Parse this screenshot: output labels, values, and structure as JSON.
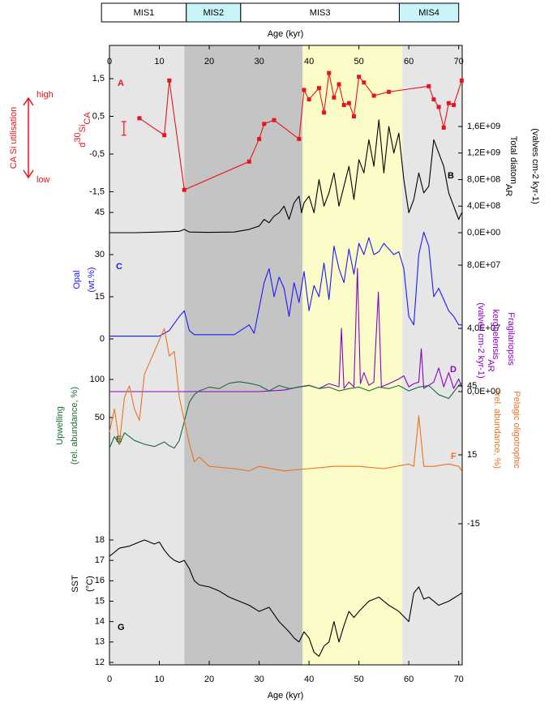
{
  "x_axis": {
    "label": "Age (kyr)",
    "xlim": [
      0,
      70.7
    ],
    "xticks": [
      0,
      10,
      20,
      30,
      40,
      50,
      60,
      70
    ]
  },
  "stages": [
    {
      "name": "MIS1",
      "start": -1.6,
      "end": 15.4,
      "color": "#ffffff"
    },
    {
      "name": "MIS2",
      "start": 15.4,
      "end": 26.3,
      "color": "#c8f4f8"
    },
    {
      "name": "MIS3",
      "start": 26.3,
      "end": 58.1,
      "color": "#ffffff"
    },
    {
      "name": "MIS4",
      "start": 58.1,
      "end": 70.0,
      "color": "#c8f4f8"
    }
  ],
  "bands": [
    {
      "start": 0,
      "end": 15,
      "color": "#e6e6e6"
    },
    {
      "start": 15,
      "end": 38.7,
      "color": "#c4c4c4"
    },
    {
      "start": 38.7,
      "end": 58.7,
      "color": "#fcfcc8"
    },
    {
      "start": 58.7,
      "end": 70.7,
      "color": "#e6e6e6"
    }
  ],
  "chart_data": [
    {
      "type": "line",
      "letter": "A",
      "axis": "left",
      "color": "#e8141b",
      "markers": true,
      "label": [
        [
          {
            "text": "d"
          },
          {
            "text": "30",
            "pos": "sup"
          },
          {
            "text": "Si"
          },
          {
            "text": "CA",
            "pos": "sub"
          }
        ]
      ],
      "annotations": {
        "high": "high",
        "low": "low",
        "note": "CA Si utilisation"
      },
      "error_bar": {
        "x": 2.9,
        "low": 0.0,
        "high": 0.36
      },
      "ylim": [
        -1.7,
        1.75
      ],
      "yticks": [
        {
          "value": -1.5,
          "label": "-1,5"
        },
        {
          "value": -0.5,
          "label": "-0,5"
        },
        {
          "value": 0.5,
          "label": "0,5"
        },
        {
          "value": 1.5,
          "label": "1,5"
        }
      ],
      "x": [
        6,
        11,
        12,
        15,
        28,
        30,
        31,
        33,
        38,
        39,
        40,
        42,
        43,
        44,
        45,
        46,
        47,
        48,
        49,
        50,
        51,
        53,
        56,
        64,
        65,
        66,
        67,
        68,
        69,
        70.6
      ],
      "values": [
        0.45,
        0.0,
        1.45,
        -1.45,
        -0.7,
        -0.1,
        0.3,
        0.4,
        -0.1,
        1.2,
        0.95,
        1.25,
        0.6,
        1.65,
        1.0,
        1.35,
        0.8,
        0.85,
        0.5,
        1.55,
        1.4,
        1.05,
        1.15,
        1.3,
        0.95,
        0.75,
        0.2,
        0.85,
        0.8,
        1.45
      ]
    },
    {
      "type": "line",
      "letter": "B",
      "axis": "right",
      "color": "#000000",
      "label": [
        [
          {
            "text": "Total diatom"
          },
          {
            "text": "AR",
            "pos": "sub"
          }
        ],
        [
          {
            "text": "(valves cm-2 kyr-1)"
          }
        ]
      ],
      "ylim": [
        0,
        1800000000.0
      ],
      "yticks": [
        {
          "value": 0,
          "label": "0,0E+00"
        },
        {
          "value": 400000000.0,
          "label": "4,0E+08"
        },
        {
          "value": 800000000.0,
          "label": "8,0E+08"
        },
        {
          "value": 1200000000.0,
          "label": "1,2E+09"
        },
        {
          "value": 1600000000.0,
          "label": "1,6E+09"
        }
      ],
      "x": [
        0,
        5,
        10,
        14,
        15,
        16,
        20,
        25,
        28,
        30,
        31,
        32,
        33,
        34,
        35,
        36,
        37,
        38,
        38.5,
        39,
        40,
        41,
        42,
        43,
        44,
        45,
        46,
        47,
        48,
        49,
        50,
        51,
        52,
        53,
        54,
        55,
        56,
        57,
        58,
        59,
        60,
        61,
        62,
        63,
        64,
        65,
        66,
        67,
        68,
        69,
        70,
        70.6
      ],
      "values": [
        0,
        0,
        10000000.0,
        20000000.0,
        50000000.0,
        10000000.0,
        5000000.0,
        10000000.0,
        50000000.0,
        100000000.0,
        200000000.0,
        150000000.0,
        250000000.0,
        300000000.0,
        400000000.0,
        200000000.0,
        450000000.0,
        550000000.0,
        300000000.0,
        450000000.0,
        550000000.0,
        300000000.0,
        800000000.0,
        400000000.0,
        600000000.0,
        900000000.0,
        400000000.0,
        700000000.0,
        1000000000.0,
        500000000.0,
        1100000000.0,
        900000000.0,
        1400000000.0,
        1000000000.0,
        1700000000.0,
        900000000.0,
        1600000000.0,
        1200000000.0,
        1500000000.0,
        800000000.0,
        300000000.0,
        500000000.0,
        900000000.0,
        600000000.0,
        700000000.0,
        1400000000.0,
        1200000000.0,
        1000000000.0,
        600000000.0,
        400000000.0,
        200000000.0,
        300000000.0
      ]
    },
    {
      "type": "line",
      "letter": "C",
      "axis": "left",
      "color": "#1a1aff",
      "label": [
        [
          {
            "text": "Opal"
          }
        ],
        [
          {
            "text": "(wt.%)"
          }
        ]
      ],
      "ylim": [
        0,
        45
      ],
      "yticks": [
        0,
        15,
        30,
        45
      ],
      "x": [
        0,
        5,
        10,
        12,
        14,
        15,
        16,
        17,
        25,
        28,
        29,
        31,
        32,
        33,
        34,
        35,
        36,
        37,
        38,
        39,
        40,
        41,
        42,
        43,
        44,
        45,
        46,
        47,
        48,
        49,
        50,
        51,
        52,
        53,
        54,
        55,
        56,
        57,
        58,
        59,
        60,
        61,
        62,
        63,
        64,
        65,
        66,
        67,
        68,
        69,
        70,
        70.6
      ],
      "values": [
        1,
        1,
        1,
        3,
        8,
        10,
        3,
        1.5,
        1.5,
        5,
        2,
        20,
        25,
        15,
        22,
        18,
        8,
        20,
        13,
        24,
        10,
        19,
        15,
        27,
        14,
        33,
        25,
        20,
        32,
        23,
        34,
        30,
        36,
        30,
        31,
        34,
        32,
        30,
        31,
        25,
        8,
        5,
        30,
        38,
        33,
        15,
        18,
        14,
        10,
        8,
        5,
        5
      ]
    },
    {
      "type": "line",
      "letter": "D",
      "axis": "right",
      "color": "#8a00c8",
      "label": [
        [
          {
            "text": "Fragilariopsis"
          }
        ],
        [
          {
            "text": "kerguelensis"
          },
          {
            "text": "AR",
            "pos": "sub"
          }
        ],
        [
          {
            "text": "(valves cm-2 kyr-1)"
          }
        ]
      ],
      "ylim": [
        0,
        80000000.0
      ],
      "yticks": [
        {
          "value": 0,
          "label": "0,0E+00"
        },
        {
          "value": 40000000.0,
          "label": "4,0E+07"
        },
        {
          "value": 80000000.0,
          "label": "8,0E+07"
        }
      ],
      "x": [
        0,
        30,
        35,
        38,
        40,
        42,
        44,
        46,
        46.5,
        47,
        48,
        49,
        49.7,
        50.3,
        51,
        52,
        53,
        53.9,
        54.5,
        56,
        58,
        59,
        60,
        61,
        62,
        62.5,
        63,
        64,
        65,
        66,
        67,
        68,
        69,
        70,
        70.6
      ],
      "values": [
        0,
        0,
        1000000.0,
        3000000.0,
        4000000.0,
        2000000.0,
        5000000.0,
        3000000.0,
        40000000.0,
        2000000.0,
        6000000.0,
        3000000.0,
        78000000.0,
        5000000.0,
        12000000.0,
        4000000.0,
        6000000.0,
        63000000.0,
        3000000.0,
        5000000.0,
        8000000.0,
        10000000.0,
        3000000.0,
        5000000.0,
        6000000.0,
        27000000.0,
        2000000.0,
        4000000.0,
        6000000.0,
        15000000.0,
        3000000.0,
        12000000.0,
        2000000.0,
        8000000.0,
        3000000.0
      ]
    },
    {
      "type": "line",
      "letter": "E",
      "axis": "left",
      "color": "#1e6b37",
      "label": [
        [
          {
            "text": "Upwelling"
          }
        ],
        [
          {
            "text": "(rel. abundance, %)"
          }
        ]
      ],
      "ylim": [
        0,
        100
      ],
      "yticks": [
        50,
        100
      ],
      "x": [
        0,
        1,
        2,
        3,
        5,
        7,
        9,
        11,
        12,
        13,
        14,
        15,
        16,
        17,
        18,
        20,
        22,
        24,
        26,
        28,
        30,
        32,
        34,
        36,
        38,
        40,
        42,
        44,
        46,
        48,
        50,
        52,
        54,
        56,
        58,
        60,
        62,
        64,
        66,
        68,
        70,
        70.6
      ],
      "values": [
        10,
        25,
        15,
        30,
        20,
        15,
        12,
        18,
        13,
        10,
        20,
        45,
        70,
        80,
        85,
        90,
        88,
        95,
        97,
        95,
        92,
        85,
        92,
        88,
        90,
        92,
        88,
        90,
        85,
        88,
        90,
        85,
        90,
        88,
        92,
        85,
        90,
        92,
        80,
        75,
        92,
        95
      ]
    },
    {
      "type": "line",
      "letter": "F",
      "axis": "right",
      "color": "#f07020",
      "label": [
        [
          {
            "text": "Pelagic oligotrophic"
          }
        ],
        [
          {
            "text": "(rel. abundance, %)"
          }
        ]
      ],
      "ylim": [
        -15,
        45
      ],
      "yticks": [
        -15,
        15,
        45
      ],
      "x": [
        0,
        1,
        2,
        3,
        4,
        5,
        6,
        7,
        8,
        9,
        10,
        11,
        12,
        13,
        14,
        15,
        16,
        17,
        18,
        20,
        25,
        28,
        30,
        35,
        40,
        45,
        50,
        55,
        60,
        61,
        62,
        63,
        65,
        68,
        70,
        70.6
      ],
      "values": [
        25,
        35,
        20,
        40,
        45,
        35,
        30,
        50,
        55,
        60,
        65,
        70,
        58,
        60,
        40,
        30,
        20,
        12,
        14,
        10,
        9,
        8,
        10,
        8,
        9,
        10,
        10,
        9,
        11,
        10,
        32,
        10,
        10,
        11,
        10,
        8
      ]
    },
    {
      "type": "line",
      "letter": "G",
      "axis": "left",
      "color": "#000000",
      "label": [
        [
          {
            "text": "SST"
          }
        ],
        [
          {
            "text": "(°C)"
          }
        ]
      ],
      "ylim": [
        12,
        18
      ],
      "yticks": [
        12,
        13,
        14,
        15,
        16,
        17,
        18
      ],
      "x": [
        0,
        2,
        4,
        6,
        7,
        9,
        10,
        11,
        12,
        13,
        14,
        15,
        16,
        17,
        18,
        20,
        22,
        24,
        26,
        28,
        30,
        32,
        34,
        36,
        37,
        38,
        39,
        40,
        41,
        42,
        43,
        44,
        45,
        46,
        47,
        48,
        49,
        50,
        52,
        54,
        56,
        58,
        60,
        61,
        62,
        63,
        64,
        66,
        68,
        70,
        70.6
      ],
      "values": [
        17.2,
        17.6,
        17.7,
        17.9,
        18.0,
        17.8,
        17.9,
        17.5,
        17.2,
        17.0,
        16.9,
        17.0,
        16.6,
        16.0,
        15.8,
        15.7,
        15.5,
        15.2,
        15.0,
        14.8,
        14.5,
        14.7,
        14.0,
        13.5,
        13.2,
        13.0,
        13.5,
        13.2,
        12.5,
        12.3,
        12.8,
        13.0,
        14.0,
        13.0,
        13.8,
        14.5,
        14.2,
        14.5,
        15.0,
        15.2,
        14.8,
        14.5,
        14.0,
        15.4,
        15.7,
        15.1,
        15.2,
        14.8,
        15.0,
        15.3,
        15.4
      ]
    }
  ]
}
